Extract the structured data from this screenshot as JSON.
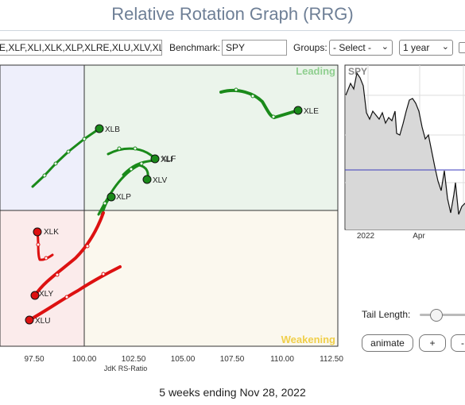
{
  "title": "Relative Rotation Graph (RRG)",
  "controls": {
    "tickers_value": "E,XLF,XLI,XLK,XLP,XLRE,XLU,XLV,XL",
    "benchmark_label": "Benchmark:",
    "benchmark_value": "SPY",
    "groups_label": "Groups:",
    "groups_value": "- Select -",
    "period_value": "1 year"
  },
  "chart_data": {
    "type": "scatter",
    "xlabel": "JdK RS-Ratio",
    "x_ticks": [
      "97.50",
      "100.00",
      "102.50",
      "105.00",
      "107.50",
      "110.00",
      "112.50"
    ],
    "quadrants": {
      "leading": "Leading",
      "weakening": "Weakening"
    },
    "series": [
      {
        "name": "XLE",
        "color": "#1a8a1a",
        "head": [
          110.7,
          102.6
        ]
      },
      {
        "name": "XLB",
        "color": "#1a8a1a",
        "head": [
          100.8,
          101.6
        ]
      },
      {
        "name": "XLI",
        "color": "#1a8a1a",
        "head": [
          103.5,
          100.8
        ]
      },
      {
        "name": "XLF",
        "color": "#1a8a1a",
        "head": [
          103.6,
          100.8
        ]
      },
      {
        "name": "XLV",
        "color": "#1a8a1a",
        "head": [
          103.2,
          100.4
        ]
      },
      {
        "name": "XLP",
        "color": "#1a8a1a",
        "head": [
          101.2,
          100.2
        ]
      },
      {
        "name": "XLK",
        "color": "#dd1111",
        "head": [
          97.6,
          99.2
        ]
      },
      {
        "name": "XLY",
        "color": "#dd1111",
        "head": [
          97.5,
          98.3
        ]
      },
      {
        "name": "XLU",
        "color": "#dd1111",
        "head": [
          97.2,
          97.9
        ]
      }
    ]
  },
  "spy_panel": {
    "label": "SPY",
    "x_ticks": [
      "2022",
      "Apr"
    ]
  },
  "tail_label": "Tail Length:",
  "buttons": {
    "animate": "animate",
    "plus": "+",
    "minus": "-"
  },
  "footer": "5 weeks ending Nov 28, 2022"
}
